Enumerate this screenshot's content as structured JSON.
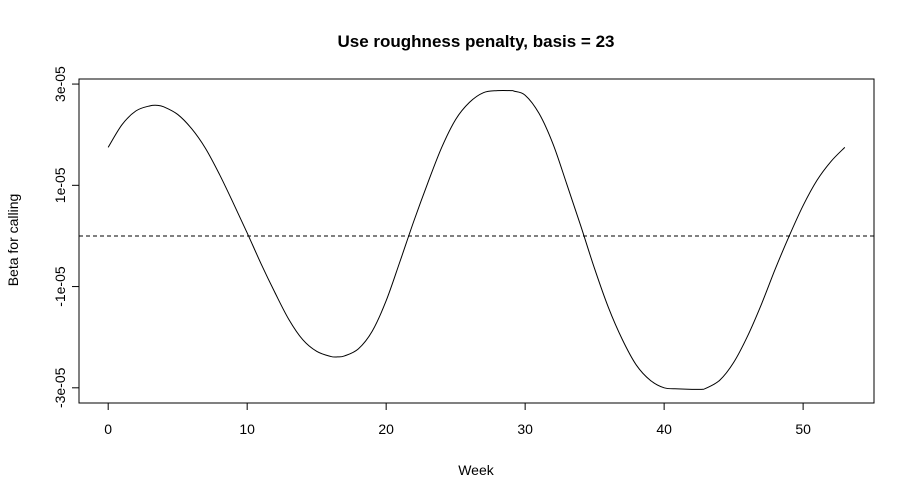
{
  "chart_data": {
    "type": "line",
    "title": "Use roughness penalty, basis = 23",
    "xlabel": "Week",
    "ylabel": "Beta for calling",
    "xlim": [
      -2.1,
      55.1
    ],
    "ylim": [
      -3.3e-05,
      3.1e-05
    ],
    "x_ticks": [
      0,
      10,
      20,
      30,
      40,
      50
    ],
    "x_tick_labels": [
      "0",
      "10",
      "20",
      "30",
      "40",
      "50"
    ],
    "y_ticks": [
      -3e-05,
      -1e-05,
      1e-05,
      3e-05
    ],
    "y_tick_labels": [
      "-3e-05",
      "-1e-05",
      "1e-05",
      "3e-05"
    ],
    "grid": false,
    "box": true,
    "reference_line": {
      "y": 0,
      "style": "dashed"
    },
    "series": [
      {
        "color": "#000000",
        "x": [
          0,
          1,
          2,
          3,
          3.5,
          4,
          5,
          6,
          7,
          8,
          9,
          10,
          11,
          12,
          13,
          14,
          15,
          16,
          16.5,
          17,
          18,
          19,
          20,
          21,
          22,
          23,
          24,
          25,
          26,
          27,
          28,
          29,
          29.2,
          30,
          31,
          32,
          33,
          34,
          35,
          36,
          37,
          38,
          39,
          40,
          41,
          42,
          42.7,
          43,
          44,
          45,
          46,
          47,
          48,
          49,
          50,
          51,
          52,
          53
        ],
        "y": [
          1.75e-05,
          2.2e-05,
          2.47e-05,
          2.57e-05,
          2.58e-05,
          2.55e-05,
          2.4e-05,
          2.12e-05,
          1.73e-05,
          1.22e-05,
          6.5e-06,
          6e-07,
          -5.5e-06,
          -1.12e-05,
          -1.65e-05,
          -2.05e-05,
          -2.28e-05,
          -2.38e-05,
          -2.39e-05,
          -2.37e-05,
          -2.23e-05,
          -1.88e-05,
          -1.28e-05,
          -5e-06,
          3e-06,
          1.05e-05,
          1.75e-05,
          2.3e-05,
          2.64e-05,
          2.83e-05,
          2.87e-05,
          2.87e-05,
          2.86e-05,
          2.78e-05,
          2.42e-05,
          1.82e-05,
          1.02e-05,
          2e-06,
          -6.5e-06,
          -1.42e-05,
          -2.05e-05,
          -2.55e-05,
          -2.85e-05,
          -3e-05,
          -3.02e-05,
          -3.03e-05,
          -3.03e-05,
          -3.01e-05,
          -2.85e-05,
          -2.5e-05,
          -1.98e-05,
          -1.35e-05,
          -6.5e-06,
          0,
          6e-06,
          1.1e-05,
          1.47e-05,
          1.75e-05
        ]
      }
    ]
  }
}
